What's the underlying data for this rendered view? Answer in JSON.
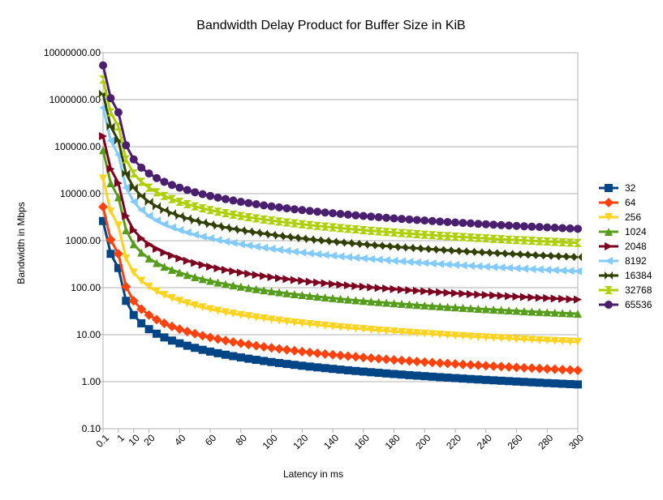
{
  "chart_data": {
    "type": "line",
    "title": "Bandwidth Delay Product for Buffer Size in KiB",
    "xlabel": "Latency in ms",
    "ylabel": "Bandwidth in Mbps",
    "y_scale": "log",
    "ylim": [
      0.1,
      10000000
    ],
    "yticks": [
      "0.10",
      "1.00",
      "10.00",
      "100.00",
      "1000.00",
      "10000.00",
      "100000.00",
      "1000000.00",
      "10000000.00"
    ],
    "x": [
      0.1,
      0.5,
      1,
      5,
      10,
      15,
      20,
      25,
      30,
      35,
      40,
      45,
      50,
      55,
      60,
      65,
      70,
      75,
      80,
      85,
      90,
      95,
      100,
      105,
      110,
      115,
      120,
      125,
      130,
      135,
      140,
      145,
      150,
      155,
      160,
      165,
      170,
      175,
      180,
      185,
      190,
      195,
      200,
      205,
      210,
      215,
      220,
      225,
      230,
      235,
      240,
      245,
      250,
      255,
      260,
      265,
      270,
      275,
      280,
      285,
      290,
      295,
      300
    ],
    "x_tick_labels": [
      "0.1",
      "1",
      "10",
      "20",
      "40",
      "60",
      "80",
      "100",
      "120",
      "140",
      "160",
      "180",
      "200",
      "220",
      "240",
      "260",
      "280",
      "300"
    ],
    "grid": true,
    "legend_position": "right",
    "series": [
      {
        "name": "32",
        "buffer_kib": 32,
        "color": "#004586",
        "marker": "square"
      },
      {
        "name": "64",
        "buffer_kib": 64,
        "color": "#ff420e",
        "marker": "diamond"
      },
      {
        "name": "256",
        "buffer_kib": 256,
        "color": "#ffd320",
        "marker": "triangle-down"
      },
      {
        "name": "1024",
        "buffer_kib": 1024,
        "color": "#579d1c",
        "marker": "triangle-up"
      },
      {
        "name": "2048",
        "buffer_kib": 2048,
        "color": "#7e0021",
        "marker": "triangle-right"
      },
      {
        "name": "8192",
        "buffer_kib": 8192,
        "color": "#83caff",
        "marker": "triangle-left"
      },
      {
        "name": "16384",
        "buffer_kib": 16384,
        "color": "#314004",
        "marker": "bowtie"
      },
      {
        "name": "32768",
        "buffer_kib": 32768,
        "color": "#aecf00",
        "marker": "hourglass"
      },
      {
        "name": "65536",
        "buffer_kib": 65536,
        "color": "#4b1f6f",
        "marker": "circle"
      }
    ],
    "value_formula": "buffer_kib * 8.192 / latency_ms"
  }
}
